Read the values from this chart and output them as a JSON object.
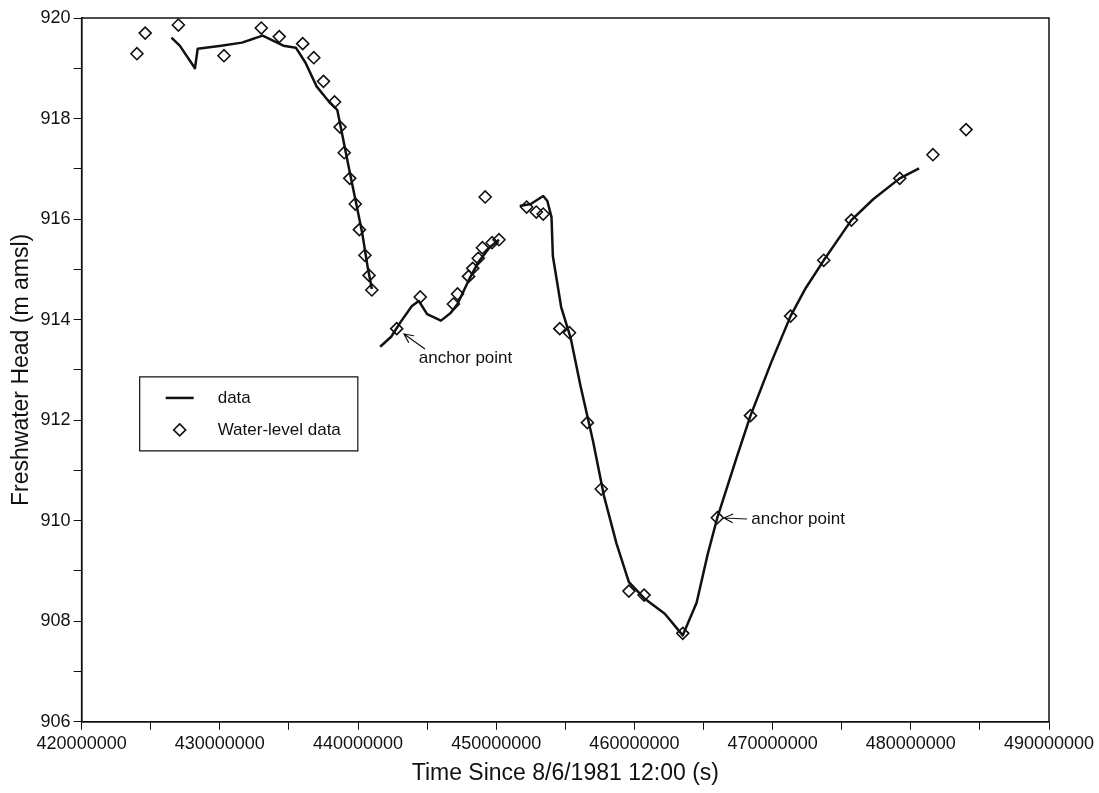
{
  "chart_data": {
    "type": "scatter",
    "xlabel": "Time Since 8/6/1981 12:00 (s)",
    "ylabel": "Freshwater Head (m amsl)",
    "xlim": [
      420000000,
      490000000
    ],
    "xticks": [
      420000000,
      {
        "value": 425000000,
        "label": null
      },
      430000000,
      {
        "value": 435000000,
        "label": null
      },
      440000000,
      {
        "value": 445000000,
        "label": null
      },
      450000000,
      {
        "value": 455000000,
        "label": null
      },
      460000000,
      {
        "value": 465000000,
        "label": null
      },
      470000000,
      {
        "value": 475000000,
        "label": null
      },
      480000000,
      {
        "value": 485000000,
        "label": null
      },
      490000000
    ],
    "ylim": [
      906,
      920
    ],
    "yticks": [
      906,
      {
        "value": 907,
        "label": null
      },
      908,
      {
        "value": 909,
        "label": null
      },
      910,
      {
        "value": 911,
        "label": null
      },
      912,
      {
        "value": 913,
        "label": null
      },
      914,
      {
        "value": 915,
        "label": null
      },
      916,
      {
        "value": 917,
        "label": null
      },
      918,
      {
        "value": 919,
        "label": null
      },
      920
    ],
    "grid": false,
    "legend": "left",
    "series": [
      {
        "name": "data",
        "type": "line",
        "marker": "none",
        "color": "#111111",
        "x": [
          426500000,
          427100000,
          428200000,
          428400000,
          430100000,
          431600000,
          433100000,
          434600000,
          435500000,
          436200000,
          437000000,
          437800000,
          438500000,
          438800000,
          439300000,
          439800000,
          440300000,
          440700000,
          441000000,
          441300000,
          441600000,
          442400000,
          443100000,
          443900000,
          444400000,
          445000000,
          446000000,
          446700000,
          447200000,
          448000000,
          448700000,
          449500000,
          450200000,
          451000000,
          451700000,
          452500000,
          453400000,
          453700000,
          454000000,
          454100000,
          454700000,
          455400000,
          456100000,
          457000000,
          457800000,
          458700000,
          459600000,
          460700000,
          462200000,
          463500000,
          464500000,
          465300000,
          466000000,
          467400000,
          468400000,
          469900000,
          471300000,
          472400000,
          473700000,
          475700000,
          477300000,
          479200000,
          480600000
        ],
        "values": [
          919.61,
          919.45,
          919.0,
          919.39,
          919.45,
          919.51,
          919.65,
          919.45,
          919.41,
          919.11,
          918.64,
          918.37,
          918.17,
          917.76,
          917.07,
          916.4,
          915.73,
          915.04,
          914.61,
          null,
          913.46,
          913.66,
          913.96,
          914.27,
          914.37,
          914.11,
          913.98,
          914.13,
          914.31,
          914.78,
          915.14,
          915.43,
          915.59,
          null,
          916.26,
          916.3,
          916.46,
          916.36,
          916.04,
          915.26,
          914.25,
          913.62,
          912.68,
          911.59,
          910.49,
          909.55,
          908.78,
          908.46,
          908.15,
          907.72,
          908.37,
          909.33,
          910.06,
          911.26,
          912.09,
          913.15,
          914.07,
          914.63,
          915.18,
          915.98,
          916.4,
          916.81,
          917.01
        ]
      },
      {
        "name": "Water-level data",
        "type": "scatter",
        "marker": "diamond",
        "color": "#111111",
        "x": [
          424000000,
          424600000,
          427000000,
          430300000,
          433000000,
          434300000,
          436000000,
          436800000,
          437500000,
          438300000,
          438700000,
          439000000,
          439400000,
          439800000,
          440100000,
          440500000,
          440800000,
          441000000,
          442800000,
          444500000,
          446900000,
          447200000,
          448000000,
          448300000,
          448700000,
          449000000,
          449200000,
          449700000,
          450200000,
          452200000,
          452900000,
          453400000,
          454600000,
          455300000,
          456600000,
          457600000,
          459600000,
          460700000,
          463500000,
          466000000,
          468400000,
          471300000,
          473700000,
          475700000,
          479200000,
          481600000,
          484000000
        ],
        "values": [
          919.29,
          919.7,
          919.86,
          919.25,
          919.8,
          919.63,
          919.49,
          919.21,
          918.74,
          918.33,
          917.83,
          917.32,
          916.81,
          916.3,
          915.79,
          915.28,
          914.88,
          914.59,
          913.82,
          914.45,
          914.31,
          914.51,
          914.86,
          915.02,
          915.22,
          915.43,
          916.44,
          915.53,
          915.59,
          916.24,
          916.14,
          916.1,
          913.82,
          913.74,
          911.95,
          910.63,
          908.6,
          908.52,
          907.76,
          910.06,
          912.09,
          914.07,
          915.18,
          915.98,
          916.81,
          917.28,
          917.78
        ]
      }
    ],
    "annotations": [
      {
        "text": "anchor point",
        "x": 442800000,
        "y": 913.82
      },
      {
        "text": "anchor point",
        "x": 466000000,
        "y": 910.06
      }
    ]
  }
}
